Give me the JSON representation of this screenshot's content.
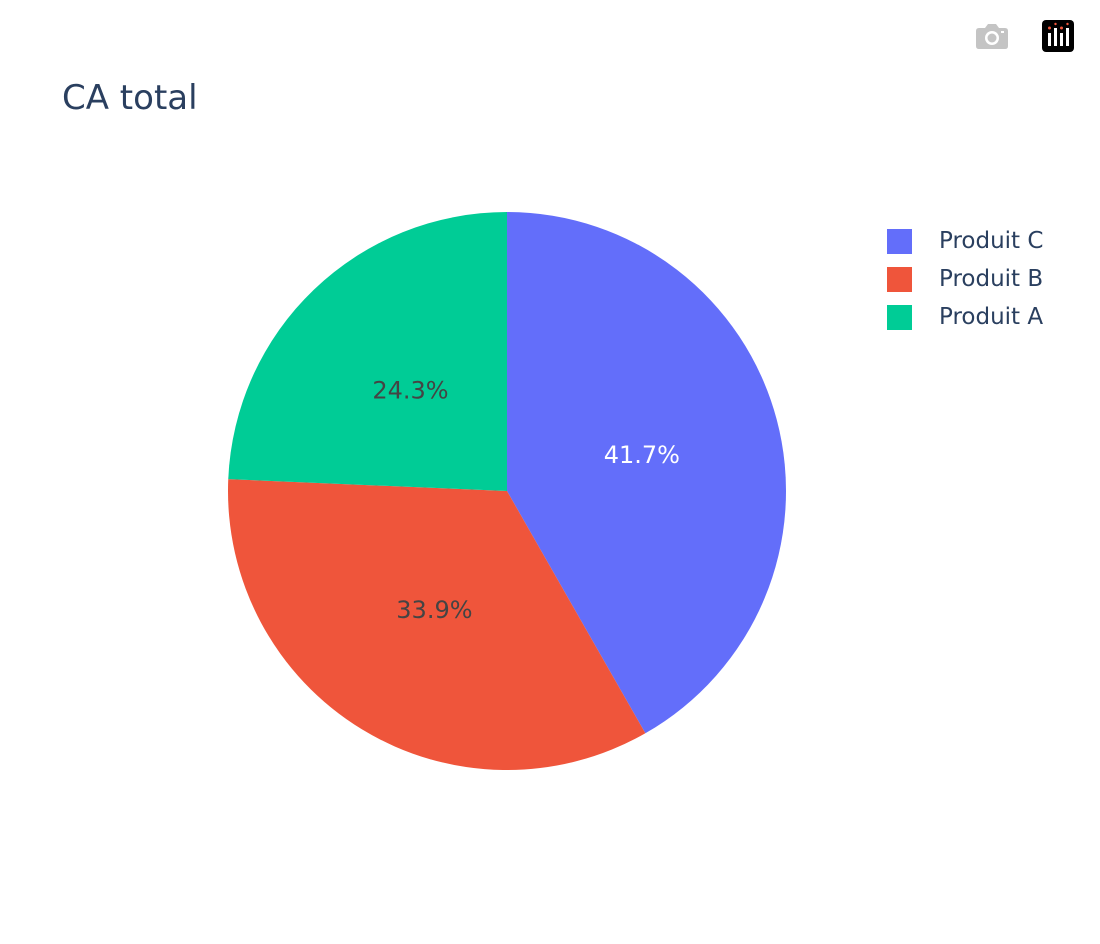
{
  "toolbar": {
    "camera_icon": "camera-icon",
    "logo_icon": "plotly-logo-icon"
  },
  "chart_data": {
    "type": "pie",
    "title": "CA total",
    "labels": [
      "Produit C",
      "Produit B",
      "Produit A"
    ],
    "values": [
      41.7,
      33.9,
      24.3
    ],
    "percent_labels": [
      "41.7%",
      "33.9%",
      "24.3%"
    ],
    "colors": [
      "#636efa",
      "#ef553b",
      "#00cc96"
    ],
    "label_colors": [
      "#ffffff",
      "#444444",
      "#444444"
    ],
    "legend_position": "top-right",
    "direction": "clockwise"
  }
}
